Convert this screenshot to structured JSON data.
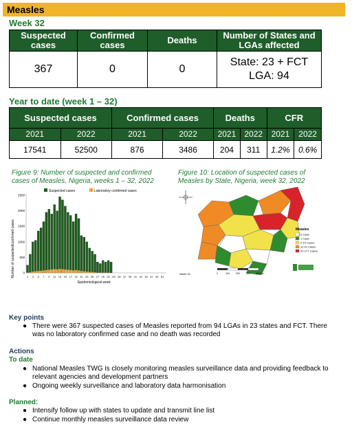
{
  "header": {
    "title": "Measles"
  },
  "week_label": "Week 32",
  "weekly_table": {
    "headers": [
      "Suspected cases",
      "Confirmed cases",
      "Deaths",
      "Number of States and LGAs affected"
    ],
    "suspected": "367",
    "confirmed": "0",
    "deaths": "0",
    "states_line": "State: 23 + FCT",
    "lga_line": "LGA: 94"
  },
  "ytd_label": "Year to date (week 1 – 32)",
  "ytd_table": {
    "headers": [
      "Suspected cases",
      "Confirmed cases",
      "Deaths",
      "CFR"
    ],
    "years": [
      "2021",
      "2022",
      "2021",
      "2022",
      "2021",
      "2022",
      "2021",
      "2022"
    ],
    "values": [
      "17541",
      "52500",
      "876",
      "3486",
      "204",
      "311",
      "1.2%",
      "0.6%"
    ]
  },
  "figure9": {
    "caption_line1": "Figure 9: Number of suspected and confirmed",
    "caption_line2": "cases of Measles, Nigeria, weeks 1 – 32, 2022"
  },
  "figure10": {
    "caption_line1": "Figure 10: Location of suspected cases of",
    "caption_line2": "Measles by State, Nigeria, week 32, 2022",
    "legend_title": "Measles",
    "legend_items": [
      {
        "label": "0 Case",
        "color": "#ffffff"
      },
      {
        "label": "1 Case",
        "color": "#2e8b2e"
      },
      {
        "label": "2-10 Cases",
        "color": "#f2e24a"
      },
      {
        "label": "11-41 Cases",
        "color": "#f08a24"
      },
      {
        "label": "41-177 Cases",
        "color": "#d8232a"
      }
    ],
    "week_note": "Week 32",
    "scale_labels": [
      "0",
      "100",
      "200",
      "300",
      "400 km"
    ]
  },
  "chart_data": {
    "type": "bar",
    "legend": [
      "Suspected cases",
      "Laboratory confirmed cases"
    ],
    "ylabel": "Number of suspected/confirmed cases",
    "xlabel": "Epidemiological week",
    "ylim": [
      0,
      2500
    ],
    "yticks": [
      "0",
      "500",
      "1000",
      "1500",
      "2000",
      "2500"
    ],
    "xticks": [
      "1",
      "3",
      "5",
      "7",
      "9",
      "11",
      "13",
      "15",
      "17",
      "19",
      "21",
      "23",
      "25",
      "27",
      "29",
      "31",
      "33",
      "35",
      "37",
      "39",
      "41",
      "43",
      "45",
      "47",
      "49",
      "51"
    ],
    "weeks": [
      1,
      2,
      3,
      4,
      5,
      6,
      7,
      8,
      9,
      10,
      11,
      12,
      13,
      14,
      15,
      16,
      17,
      18,
      19,
      20,
      21,
      22,
      23,
      24,
      25,
      26,
      27,
      28,
      29,
      30,
      31,
      32
    ],
    "series": [
      {
        "name": "Suspected cases",
        "color": "#1d5e1d",
        "values": [
          250,
          600,
          1000,
          1050,
          1350,
          1450,
          1650,
          1950,
          2050,
          1900,
          2200,
          2000,
          2450,
          2350,
          2150,
          1950,
          1850,
          1650,
          1900,
          1750,
          1200,
          1150,
          1000,
          800,
          700,
          600,
          350,
          300,
          400,
          350,
          400,
          350
        ]
      },
      {
        "name": "Laboratory confirmed cases",
        "color": "#f0a030",
        "values": [
          10,
          20,
          40,
          50,
          60,
          70,
          80,
          90,
          100,
          110,
          120,
          110,
          130,
          120,
          110,
          100,
          90,
          80,
          90,
          80,
          60,
          50,
          40,
          30,
          30,
          20,
          10,
          10,
          10,
          10,
          5,
          0
        ]
      }
    ]
  },
  "key_points": {
    "title": "Key points",
    "line1": "There were 367 suspected cases of Measles reported from 94 LGAs in 23 states and FCT. There",
    "line2": "was no laboratory confirmed case and no death was recorded"
  },
  "actions": {
    "title": "Actions",
    "to_date_title": "To date",
    "to_date_1a": "National Measles TWG is closely monitoring measles surveillance data and providing feedback to",
    "to_date_1b": "relevant agencies and development partners",
    "to_date_2": "Ongoing weekly surveillance and laboratory data harmonisation",
    "planned_title": "Planned:",
    "planned_1": "Intensify follow up with states to update and transmit line list",
    "planned_2": "Continue monthly measles surveillance data review"
  }
}
